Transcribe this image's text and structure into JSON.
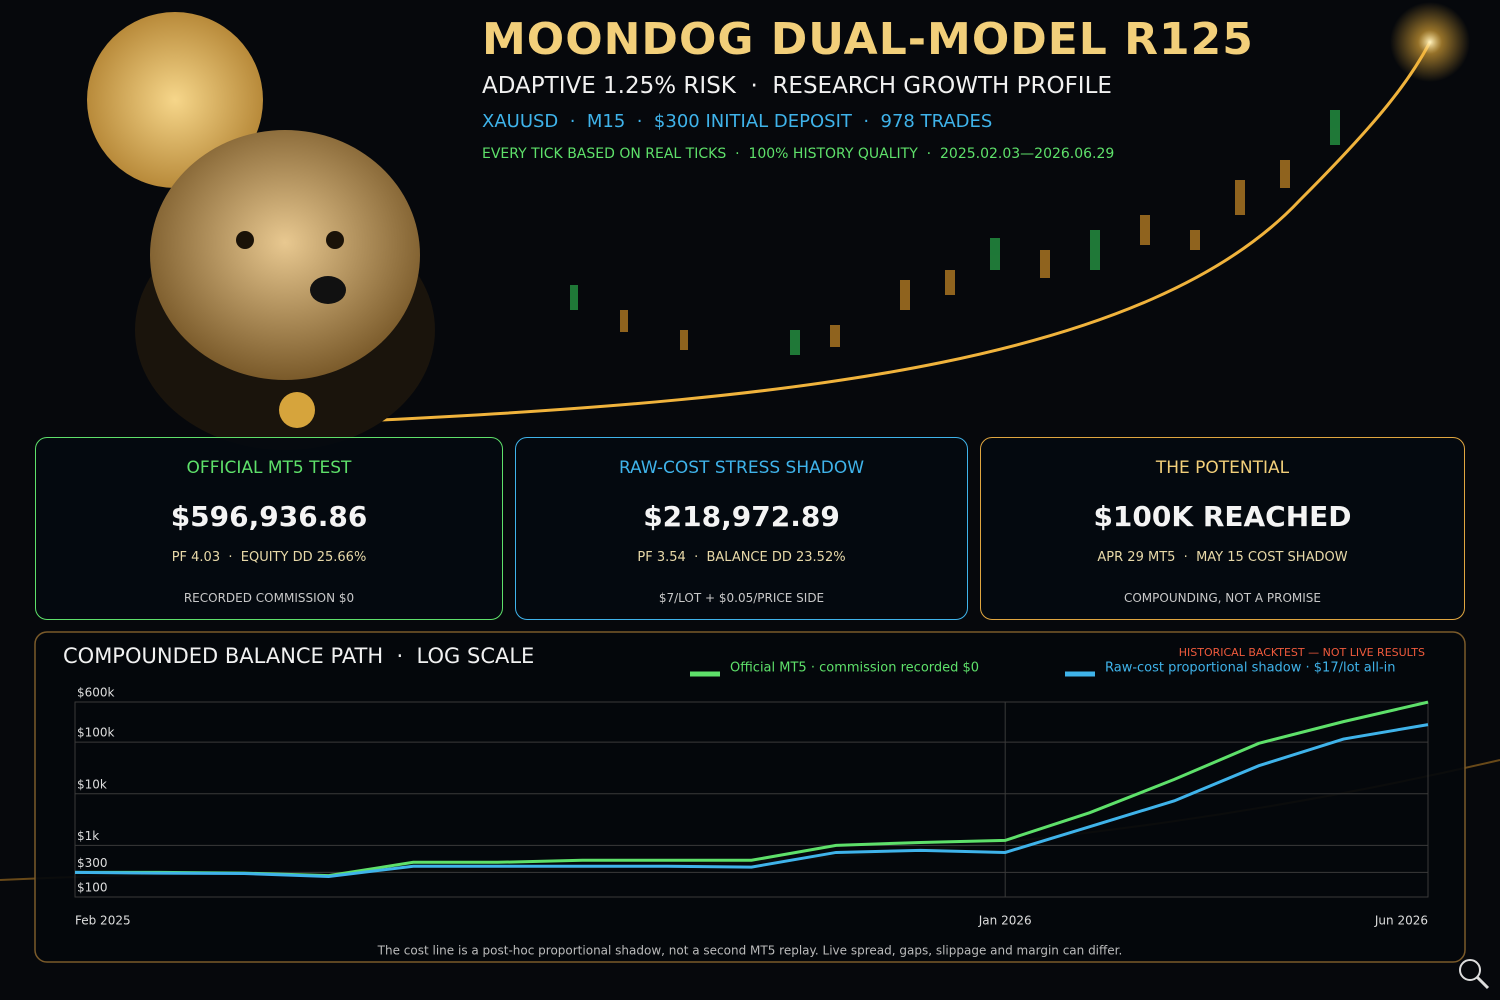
{
  "header": {
    "title": "MOONDOG DUAL-MODEL R125",
    "subtitle": "ADAPTIVE 1.25% RISK  ·  RESEARCH GROWTH PROFILE",
    "specs": "XAUUSD  ·  M15  ·  $300 INITIAL DEPOSIT  ·  978 TRADES",
    "quality": "EVERY TICK BASED ON REAL TICKS  ·  100% HISTORY QUALITY  ·  2025.02.03—2026.06.29"
  },
  "cards": [
    {
      "title": "OFFICIAL MT5 TEST",
      "value": "$596,936.86",
      "stats": "PF 4.03  ·  EQUITY DD 25.66%",
      "note": "RECORDED COMMISSION $0"
    },
    {
      "title": "RAW-COST STRESS SHADOW",
      "value": "$218,972.89",
      "stats": "PF 3.54  ·  BALANCE DD 23.52%",
      "note": "$7/LOT + $0.05/PRICE SIDE"
    },
    {
      "title": "THE POTENTIAL",
      "value": "$100K REACHED",
      "stats": "APR 29 MT5  ·  MAY 15 COST SHADOW",
      "note": "COMPOUNDING, NOT A PROMISE"
    }
  ],
  "chart_data": {
    "type": "line",
    "title": "COMPOUNDED BALANCE PATH  ·  LOG SCALE",
    "subtitle": "HISTORICAL BACKTEST — NOT LIVE RESULTS",
    "note": "The cost line is a post-hoc proportional shadow, not a second MT5 replay. Live spread, gaps, slippage and margin can differ.",
    "x": [
      "2025-02",
      "2025-03",
      "2025-04",
      "2025-05",
      "2025-06",
      "2025-07",
      "2025-08",
      "2025-09",
      "2025-10",
      "2025-11",
      "2025-12",
      "2026-01",
      "2026-02",
      "2026-03",
      "2026-04",
      "2026-05",
      "2026-06"
    ],
    "xlim": [
      "2025-02",
      "2026-06"
    ],
    "xticks": [
      {
        "value": "2025-02",
        "label": "Feb 2025"
      },
      {
        "value": "2026-01",
        "label": "Jan 2026"
      },
      {
        "value": "2026-06",
        "label": "Jun 2026"
      }
    ],
    "ylim": [
      100,
      600000
    ],
    "log_scale": true,
    "grid": true,
    "yticks": [
      {
        "value": 100,
        "label": "$100"
      },
      {
        "value": 300,
        "label": "$300"
      },
      {
        "value": 1000,
        "label": "$1k"
      },
      {
        "value": 10000,
        "label": "$10k"
      },
      {
        "value": 100000,
        "label": "$100k"
      },
      {
        "value": 600000,
        "label": "$600k"
      }
    ],
    "series": [
      {
        "name": "Official MT5 · commission recorded $0",
        "color": "#5ee06a",
        "values": [
          300,
          300,
          290,
          260,
          470,
          470,
          515,
          515,
          515,
          1000,
          1140,
          1250,
          4300,
          19000,
          95000,
          250000,
          596936.86
        ]
      },
      {
        "name": "Raw-cost proportional shadow · $17/lot all-in",
        "color": "#3fb3ea",
        "values": [
          300,
          290,
          285,
          250,
          395,
          395,
          395,
          395,
          380,
          730,
          800,
          730,
          2300,
          7300,
          35000,
          115000,
          218972.89
        ]
      }
    ]
  }
}
